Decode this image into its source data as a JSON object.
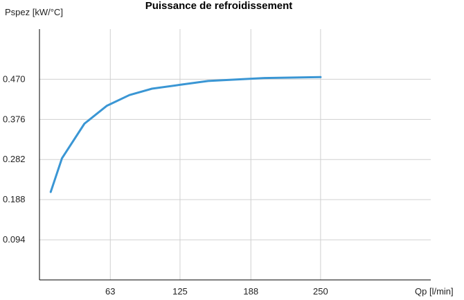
{
  "colors": {
    "line": "#3a96d4",
    "grid": "#d0d0d0",
    "axis": "#000000",
    "background": "#ffffff"
  },
  "chart_data": {
    "type": "line",
    "title": "Puissance de refroidissement",
    "xlabel": "Qp [l/min]",
    "ylabel": "Pspez [kW/°C]",
    "xlim": [
      0,
      348
    ],
    "ylim": [
      0,
      0.5875
    ],
    "x_ticks": [
      63,
      125,
      188,
      250
    ],
    "x_tick_labels": [
      "63",
      "125",
      "188",
      "250"
    ],
    "y_ticks": [
      0.094,
      0.188,
      0.282,
      0.376,
      0.47
    ],
    "y_tick_labels": [
      "0.094",
      "0.188",
      "0.282",
      "0.376",
      "0.470"
    ],
    "grid": true,
    "series": [
      {
        "values": [
          {
            "x": 10,
            "y": 0.206
          },
          {
            "x": 20,
            "y": 0.285
          },
          {
            "x": 40,
            "y": 0.366
          },
          {
            "x": 60,
            "y": 0.408
          },
          {
            "x": 80,
            "y": 0.433
          },
          {
            "x": 100,
            "y": 0.448
          },
          {
            "x": 125,
            "y": 0.457
          },
          {
            "x": 150,
            "y": 0.466
          },
          {
            "x": 200,
            "y": 0.473
          },
          {
            "x": 250,
            "y": 0.475
          }
        ]
      }
    ]
  }
}
